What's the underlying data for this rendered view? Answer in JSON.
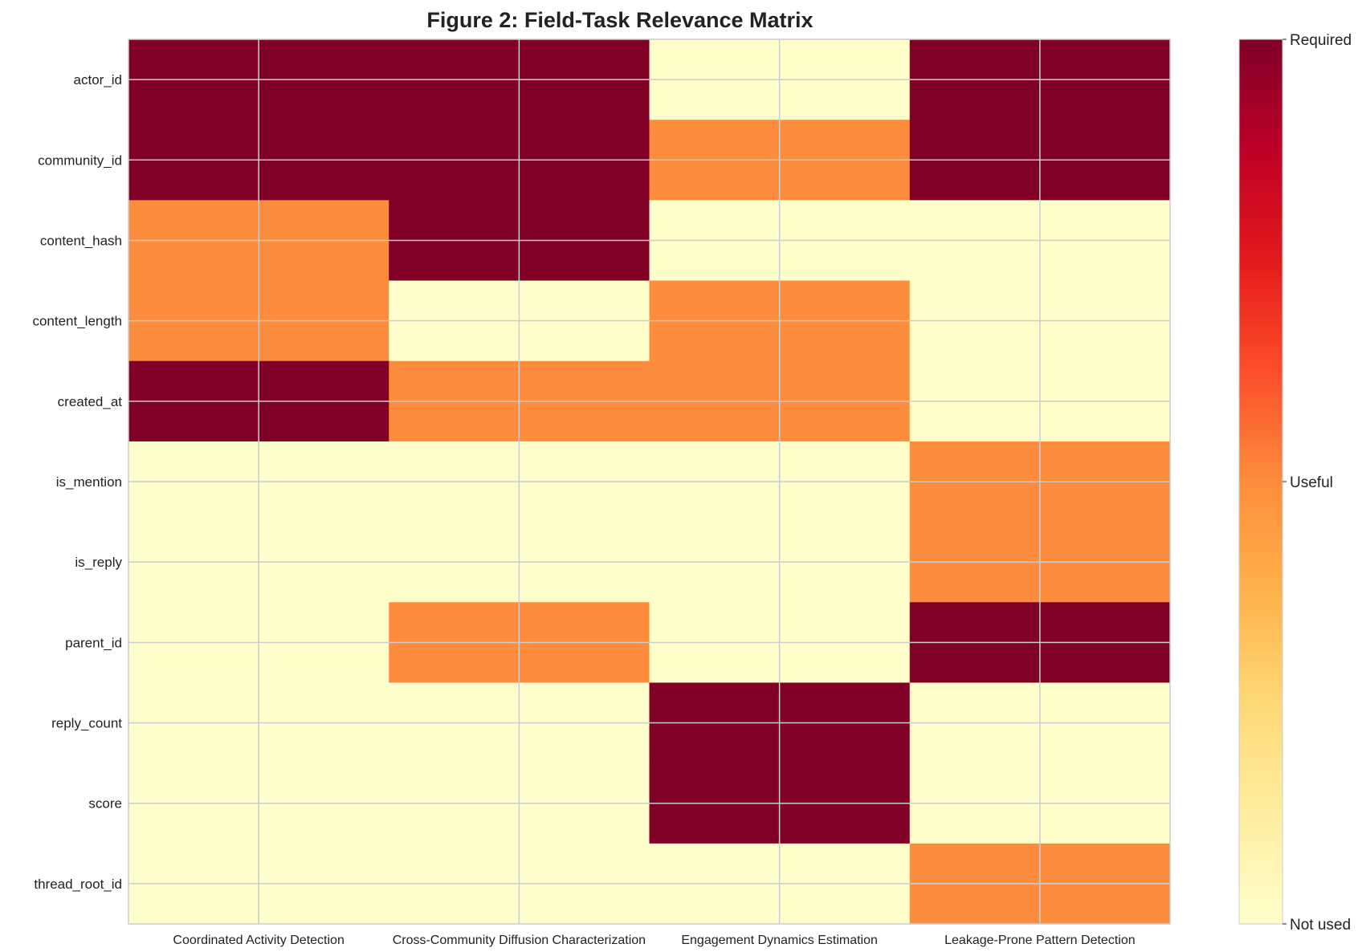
{
  "chart_data": {
    "type": "heatmap",
    "title": "Figure 2: Field-Task Relevance Matrix",
    "x_categories": [
      "Coordinated Activity Detection",
      "Cross-Community Diffusion Characterization",
      "Engagement Dynamics Estimation",
      "Leakage-Prone Pattern Detection"
    ],
    "y_categories": [
      "actor_id",
      "community_id",
      "content_hash",
      "content_length",
      "created_at",
      "is_mention",
      "is_reply",
      "parent_id",
      "reply_count",
      "score",
      "thread_root_id"
    ],
    "values": [
      [
        2,
        2,
        0,
        2
      ],
      [
        2,
        2,
        1,
        2
      ],
      [
        1,
        2,
        0,
        0
      ],
      [
        1,
        0,
        1,
        0
      ],
      [
        2,
        1,
        1,
        0
      ],
      [
        0,
        0,
        0,
        1
      ],
      [
        0,
        0,
        0,
        1
      ],
      [
        0,
        1,
        0,
        2
      ],
      [
        0,
        0,
        2,
        0
      ],
      [
        0,
        0,
        2,
        0
      ],
      [
        0,
        0,
        0,
        1
      ]
    ],
    "value_range": [
      0,
      2
    ],
    "colormap": "YlOrRd",
    "level_colors": [
      "#ffffcc",
      "#fd8d3c",
      "#800026"
    ],
    "colorbar": {
      "ticks": [
        0,
        1,
        2
      ],
      "tick_labels": [
        "Not used",
        "Useful",
        "Required"
      ],
      "gradient_colors": [
        "#ffffcc",
        "#ffeda0",
        "#fed976",
        "#feb24c",
        "#fd8d3c",
        "#fc4e2a",
        "#e31a1c",
        "#bd0026",
        "#800026"
      ]
    },
    "grid": true,
    "grid_color": "#cccccc"
  }
}
